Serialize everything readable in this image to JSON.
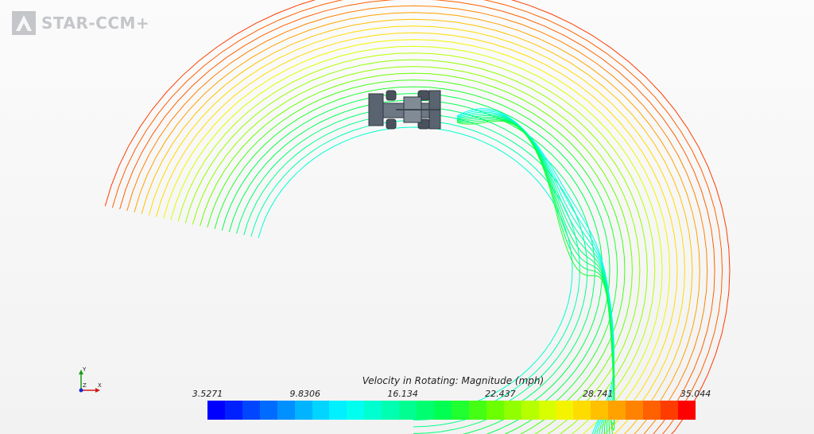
{
  "app": {
    "name": "STAR-CCM+"
  },
  "scene": {
    "triad": {
      "x_label": "X",
      "y_label": "Y",
      "z_label": "Z"
    }
  },
  "legend": {
    "title": "Velocity in Rotating: Magnitude (mph)",
    "min": 3.5271,
    "max": 35.044,
    "ticks": [
      "3.5271",
      "9.8306",
      "16.134",
      "22.437",
      "28.741",
      "35.044"
    ],
    "colors": [
      "#0000ff",
      "#0020ff",
      "#0046ff",
      "#006cff",
      "#0090ff",
      "#00b4ff",
      "#00d4ff",
      "#00f0ff",
      "#00ffee",
      "#00ffd0",
      "#00ffb0",
      "#00ff90",
      "#00ff70",
      "#00ff50",
      "#20ff30",
      "#44ff14",
      "#6cff00",
      "#92ff00",
      "#b6ff00",
      "#d8ff00",
      "#f4f400",
      "#ffdc00",
      "#ffc000",
      "#ffa200",
      "#ff8200",
      "#ff6000",
      "#ff3c00",
      "#ff0000"
    ]
  }
}
